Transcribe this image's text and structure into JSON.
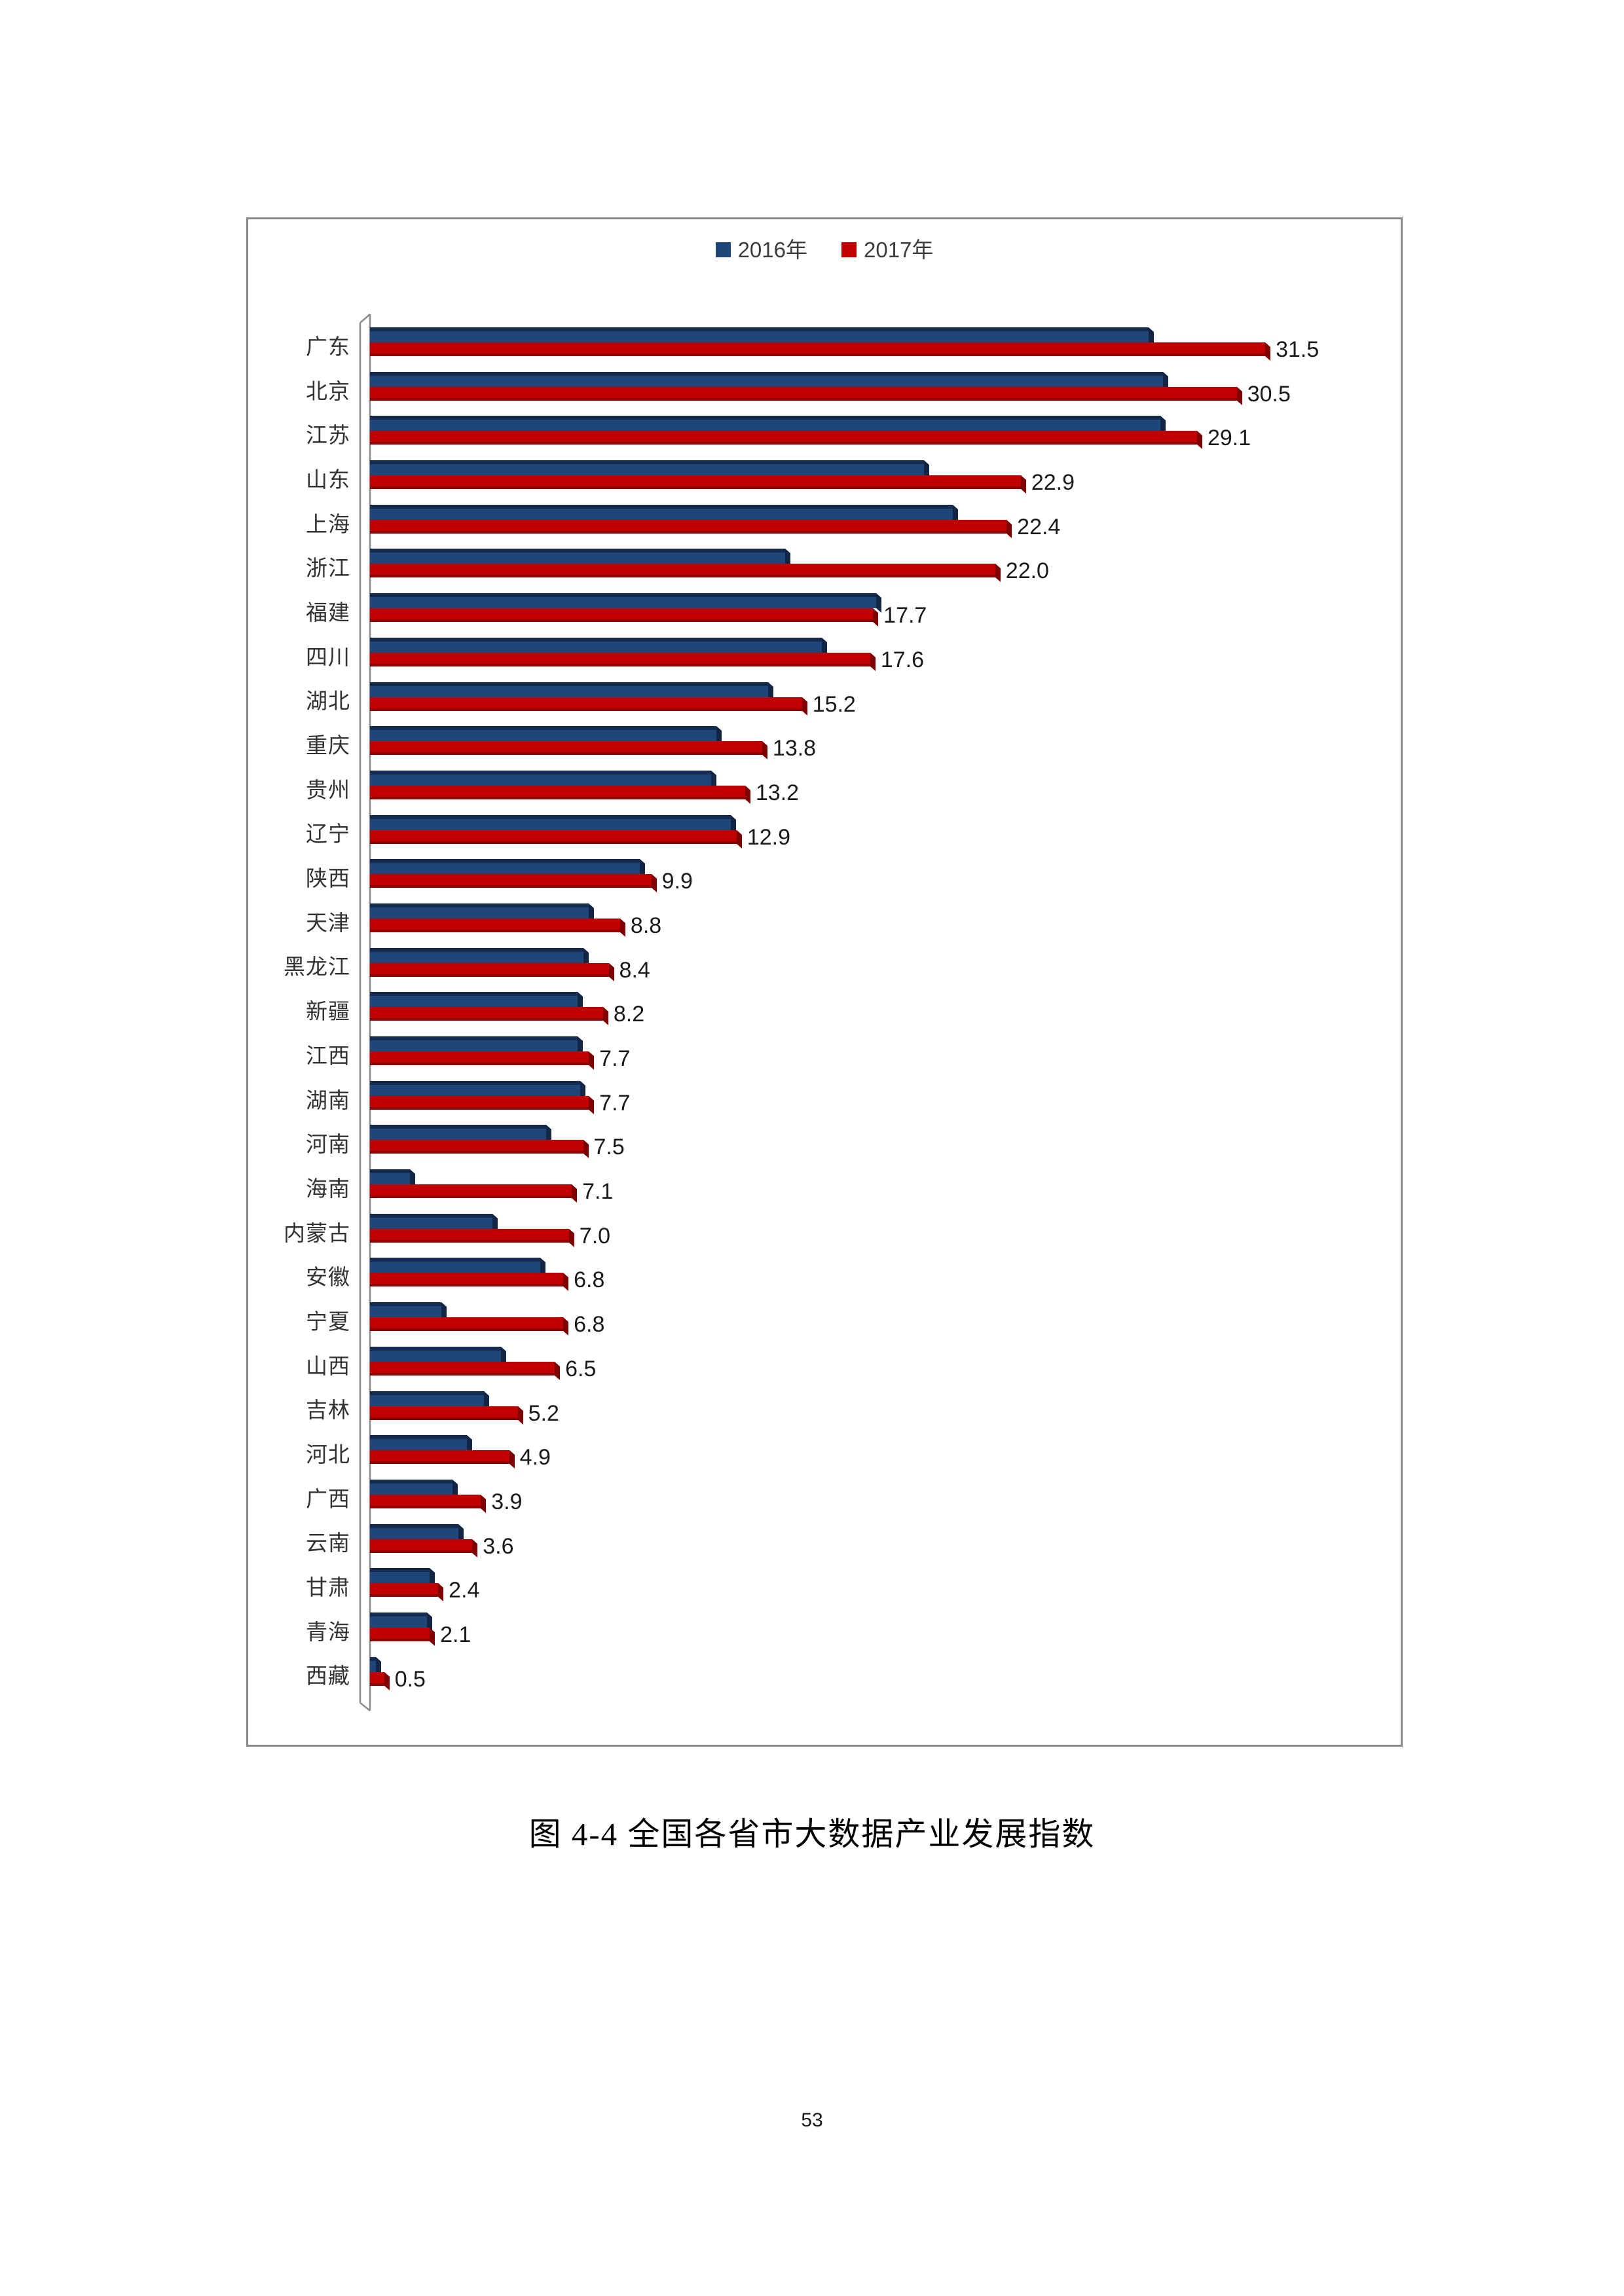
{
  "page": {
    "number": "53"
  },
  "figure": {
    "caption": "图 4-4 全国各省市大数据产业发展指数"
  },
  "chart_data": {
    "type": "bar",
    "orientation": "horizontal",
    "title": "",
    "legend_position": "top-center",
    "grid": false,
    "value_axis_ticks": "none",
    "xlim": [
      0,
      36
    ],
    "categories": [
      "广东",
      "北京",
      "江苏",
      "山东",
      "上海",
      "浙江",
      "福建",
      "四川",
      "湖北",
      "重庆",
      "贵州",
      "辽宁",
      "陕西",
      "天津",
      "黑龙江",
      "新疆",
      "江西",
      "湖南",
      "河南",
      "海南",
      "内蒙古",
      "安徽",
      "宁夏",
      "山西",
      "吉林",
      "河北",
      "广西",
      "云南",
      "甘肃",
      "青海",
      "西藏"
    ],
    "series": [
      {
        "name": "2016年",
        "color": "#1F4678",
        "values": [
          27.4,
          27.9,
          27.8,
          19.5,
          20.5,
          14.6,
          17.8,
          15.9,
          14.0,
          12.2,
          12.0,
          12.7,
          9.5,
          7.7,
          7.5,
          7.3,
          7.3,
          7.4,
          6.2,
          1.4,
          4.3,
          6.0,
          2.5,
          4.6,
          4.0,
          3.4,
          2.9,
          3.1,
          2.1,
          2.0,
          0.2
        ]
      },
      {
        "name": "2017年",
        "color": "#C00000",
        "values": [
          31.5,
          30.5,
          29.1,
          22.9,
          22.4,
          22.0,
          17.7,
          17.6,
          15.2,
          13.8,
          13.2,
          12.9,
          9.9,
          8.8,
          8.4,
          8.2,
          7.7,
          7.7,
          7.5,
          7.1,
          7.0,
          6.8,
          6.8,
          6.5,
          5.2,
          4.9,
          3.9,
          3.6,
          2.4,
          2.1,
          0.5
        ]
      }
    ],
    "value_labels": {
      "series": "2017年",
      "decimals": 1,
      "position": "right-of-bar"
    }
  },
  "colors": {
    "bar_2016": "#1F4678",
    "bar_2016_dark": "#152C50",
    "bar_2017": "#C00000",
    "bar_2017_dark": "#8F0000",
    "axis": "#8C8C8C",
    "frame_border": "#8A8A8A",
    "legend_text": "#3D3D3D"
  }
}
